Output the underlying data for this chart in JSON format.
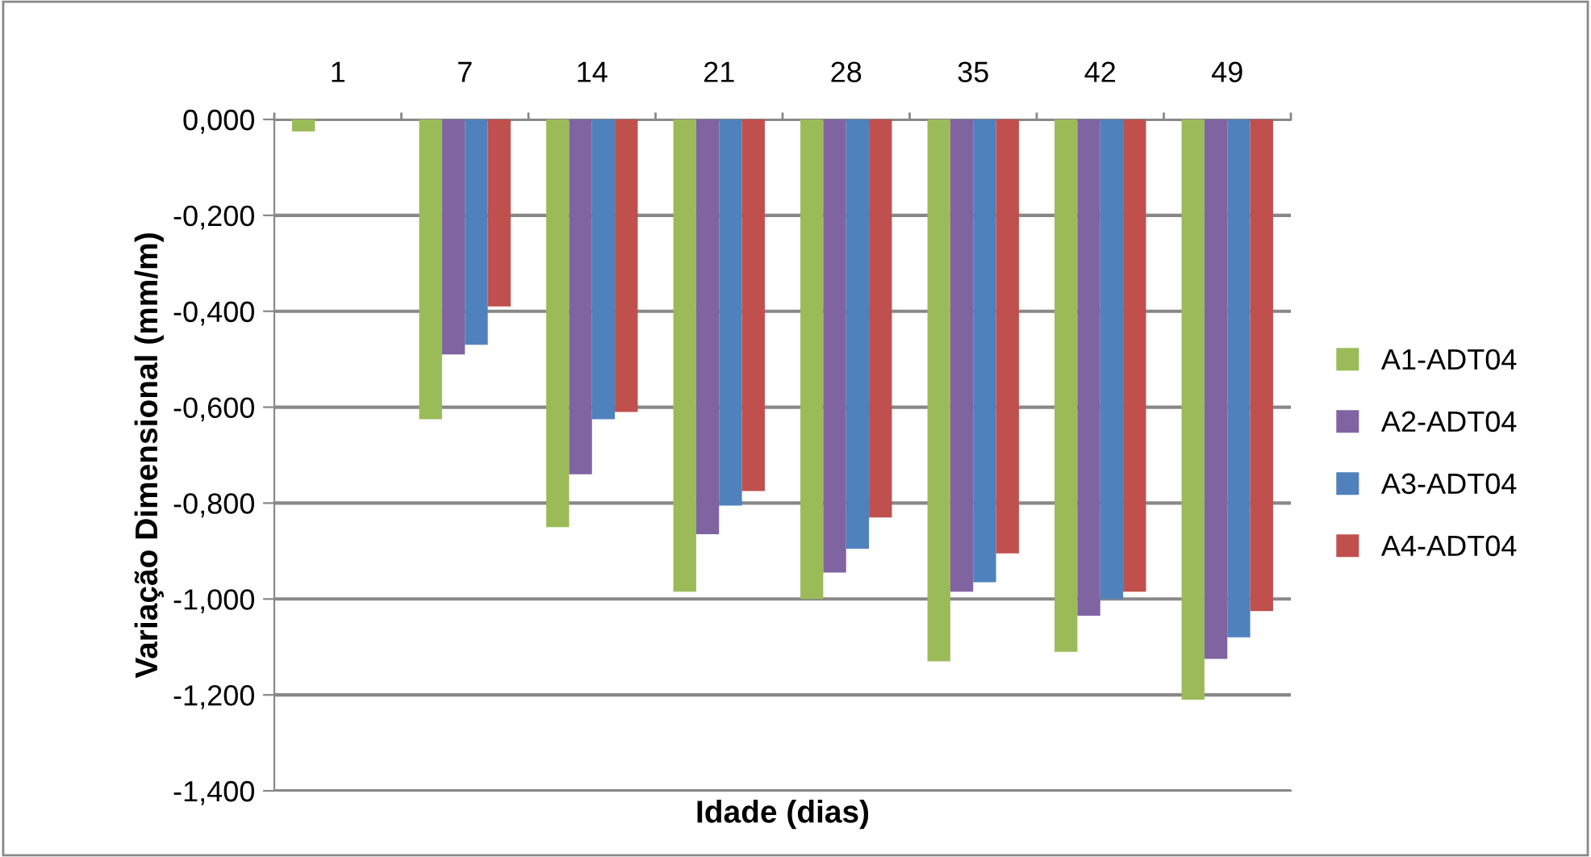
{
  "chart_data": {
    "type": "bar",
    "xlabel": "Idade (dias)",
    "ylabel": "Variação Dimensional (mm/m)",
    "categories": [
      "1",
      "7",
      "14",
      "21",
      "28",
      "35",
      "42",
      "49"
    ],
    "series": [
      {
        "name": "A1-ADT04",
        "color": "#9bbb59",
        "values": [
          -0.025,
          -0.625,
          -0.85,
          -0.985,
          -1.0,
          -1.13,
          -1.11,
          -1.21
        ]
      },
      {
        "name": "A2-ADT04",
        "color": "#8064a2",
        "values": [
          null,
          -0.49,
          -0.74,
          -0.865,
          -0.945,
          -0.985,
          -1.035,
          -1.125
        ]
      },
      {
        "name": "A3-ADT04",
        "color": "#4f81bd",
        "values": [
          null,
          -0.47,
          -0.625,
          -0.805,
          -0.895,
          -0.965,
          -1.0,
          -1.08
        ]
      },
      {
        "name": "A4-ADT04",
        "color": "#c0504d",
        "values": [
          null,
          -0.39,
          -0.61,
          -0.775,
          -0.83,
          -0.905,
          -0.985,
          -1.025
        ]
      }
    ],
    "ylim": [
      -1.4,
      0
    ],
    "yticks": [
      {
        "value": -1.4,
        "label": "-1,400"
      },
      {
        "value": -1.2,
        "label": "-1,200"
      },
      {
        "value": -1.0,
        "label": "-1,000"
      },
      {
        "value": -0.8,
        "label": "-0,800"
      },
      {
        "value": -0.6,
        "label": "-0,600"
      },
      {
        "value": -0.4,
        "label": "-0,400"
      },
      {
        "value": -0.2,
        "label": "-0,200"
      },
      {
        "value": 0,
        "label": "0,000"
      }
    ],
    "grid": "y",
    "legend": "right"
  }
}
